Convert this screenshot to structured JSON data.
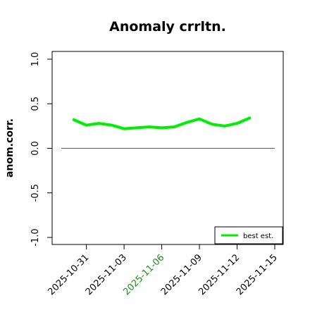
{
  "chart_data": {
    "type": "line",
    "title": "Anomaly crrltn.",
    "xlabel": "",
    "ylabel": "anom.corr.",
    "ylim": [
      -1.0,
      1.0
    ],
    "yticks": [
      "-1.0",
      "-0.5",
      "0.0",
      "0.5",
      "1.0"
    ],
    "x": [
      "2025-10-30",
      "2025-10-31",
      "2025-11-01",
      "2025-11-02",
      "2025-11-03",
      "2025-11-04",
      "2025-11-05",
      "2025-11-06",
      "2025-11-07",
      "2025-11-08",
      "2025-11-09",
      "2025-11-10",
      "2025-11-11",
      "2025-11-12",
      "2025-11-13"
    ],
    "xlim": [
      "2025-10-29",
      "2025-11-15"
    ],
    "xticks": [
      {
        "date": "2025-10-31",
        "label": "2025-10-31",
        "color": "#000000"
      },
      {
        "date": "2025-11-03",
        "label": "2025-11-03",
        "color": "#000000"
      },
      {
        "date": "2025-11-06",
        "label": "2025-11-06",
        "color": "#228B22"
      },
      {
        "date": "2025-11-09",
        "label": "2025-11-09",
        "color": "#000000"
      },
      {
        "date": "2025-11-12",
        "label": "2025-11-12",
        "color": "#000000"
      },
      {
        "date": "2025-11-15",
        "label": "2025-11-15",
        "color": "#000000"
      }
    ],
    "series": [
      {
        "name": "best est.",
        "color": "#00ee00",
        "values": [
          0.32,
          0.26,
          0.28,
          0.26,
          0.22,
          0.23,
          0.24,
          0.23,
          0.24,
          0.29,
          0.33,
          0.27,
          0.25,
          0.28,
          0.34
        ]
      }
    ],
    "reference_line": {
      "y": 0.0,
      "color": "#555555"
    },
    "legend_position": "bottom-right",
    "grid": false
  }
}
